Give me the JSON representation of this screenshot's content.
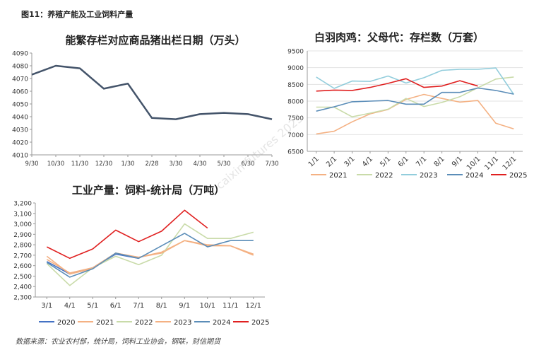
{
  "header": {
    "figure_title": "图11：养殖产能及工业饲料产量"
  },
  "footer": {
    "source": "数据来源：农业农村部，统计局，饲料工业协会，钢联，财信期货"
  },
  "watermark": {
    "text": "caixin futures 2025"
  },
  "colors": {
    "dark": "#44546a",
    "c2020": "#4472c4",
    "c2021": "#f4b183",
    "c2022": "#c9dba9",
    "c2023": "#92cddc",
    "c2024": "#5b8db8",
    "c2025": "#e02020"
  },
  "chart_data": [
    {
      "id": "sow",
      "type": "line",
      "title": "能繁存栏对应商品猪出栏日期（万头）",
      "categories": [
        "9/30",
        "10/30",
        "11/30",
        "12/30",
        "1/30",
        "2/28",
        "3/30",
        "4/30",
        "5/30",
        "6/30",
        "7/30"
      ],
      "ylim": [
        4010,
        4090
      ],
      "yticks": [
        4010,
        4020,
        4030,
        4040,
        4050,
        4060,
        4070,
        4080,
        4090
      ],
      "series": [
        {
          "name": "能繁存栏",
          "color": "#44546a",
          "values": [
            4073,
            4080,
            4078,
            4062,
            4066,
            4039,
            4038,
            4042,
            4043,
            4042,
            4038
          ]
        }
      ]
    },
    {
      "id": "broiler",
      "type": "line",
      "title": "白羽肉鸡：父母代：存栏数（万套）",
      "categories": [
        "1/1",
        "2/1",
        "3/1",
        "4/1",
        "5/1",
        "6/1",
        "7/1",
        "8/1",
        "9/1",
        "10/1",
        "11/1",
        "12/1"
      ],
      "ylim": [
        6500,
        9500
      ],
      "yticks": [
        6500,
        7000,
        7500,
        8000,
        8500,
        9000,
        9500
      ],
      "series": [
        {
          "name": "2021",
          "color": "#f4b183",
          "values": [
            7020,
            7100,
            7380,
            7620,
            7750,
            8050,
            8200,
            8080,
            7970,
            8020,
            7340,
            7170
          ]
        },
        {
          "name": "2022",
          "color": "#c9dba9",
          "values": [
            7820,
            7820,
            7530,
            7640,
            7760,
            8080,
            7840,
            7960,
            8130,
            8400,
            8660,
            8720
          ]
        },
        {
          "name": "2023",
          "color": "#92cddc",
          "values": [
            8720,
            8380,
            8600,
            8590,
            8750,
            8540,
            8700,
            8920,
            8950,
            8950,
            8990,
            8200
          ]
        },
        {
          "name": "2024",
          "color": "#5b8db8",
          "values": [
            7700,
            7830,
            7980,
            8000,
            8020,
            7910,
            7910,
            8260,
            8260,
            8390,
            8320,
            8210
          ]
        },
        {
          "name": "2025",
          "color": "#e02020",
          "values": [
            8300,
            8330,
            8320,
            8410,
            8530,
            8670,
            8410,
            8450,
            8610,
            8450,
            null,
            null
          ]
        }
      ]
    },
    {
      "id": "feed",
      "type": "line",
      "title": "工业产量：饲料-统计局（万吨）",
      "categories": [
        "3/1",
        "4/1",
        "5/1",
        "6/1",
        "7/1",
        "8/1",
        "9/1",
        "10/1",
        "11/1",
        "12/1"
      ],
      "ylim": [
        2300,
        3200
      ],
      "yticks": [
        2300,
        2400,
        2500,
        2600,
        2700,
        2800,
        2900,
        3000,
        3100,
        3200
      ],
      "series": [
        {
          "name": "2020",
          "color": "#4472c4",
          "values": [
            2640,
            2520,
            2580,
            2710,
            2670,
            null,
            null,
            null,
            null,
            null
          ]
        },
        {
          "name": "2021",
          "color": "#f4b183",
          "values": [
            2690,
            2520,
            2570,
            2720,
            2680,
            2730,
            2840,
            2800,
            2790,
            2710
          ]
        },
        {
          "name": "2022",
          "color": "#c9dba9",
          "values": [
            2620,
            2410,
            2580,
            2690,
            2610,
            2700,
            3000,
            2860,
            2860,
            2920
          ]
        },
        {
          "name": "2023",
          "color": "#f4b183",
          "values": [
            2660,
            2530,
            2580,
            2720,
            2680,
            2720,
            2840,
            2790,
            2790,
            2700
          ]
        },
        {
          "name": "2024",
          "color": "#5b8db8",
          "values": [
            2630,
            2490,
            2570,
            2720,
            2670,
            2790,
            2910,
            2780,
            2840,
            2840
          ]
        },
        {
          "name": "2025",
          "color": "#e02020",
          "values": [
            2780,
            2670,
            2760,
            2940,
            2830,
            2930,
            3130,
            2960,
            null,
            null
          ]
        }
      ]
    }
  ]
}
